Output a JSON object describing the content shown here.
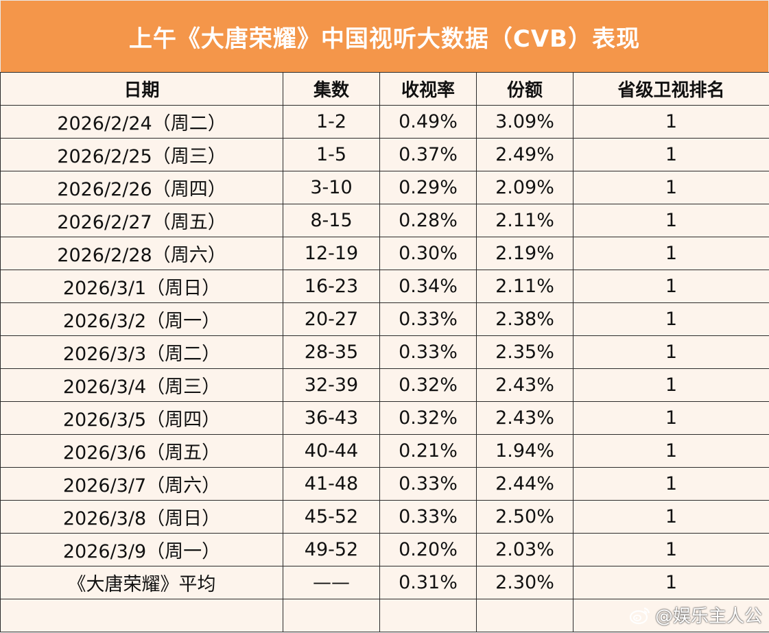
{
  "title": "上午《大唐荣耀》中国视听大数据（CVB）表现",
  "headers": [
    "日期",
    "集数",
    "收视率",
    "份额",
    "省级卫视排名"
  ],
  "rows": [
    [
      "2026/2/24（周二）",
      "1-2",
      "0.49%",
      "3.09%",
      "1"
    ],
    [
      "2026/2/25（周三）",
      "1-5",
      "0.37%",
      "2.49%",
      "1"
    ],
    [
      "2026/2/26（周四）",
      "3-10",
      "0.29%",
      "2.09%",
      "1"
    ],
    [
      "2026/2/27（周五）",
      "8-15",
      "0.28%",
      "2.11%",
      "1"
    ],
    [
      "2026/2/28（周六）",
      "12-19",
      "0.30%",
      "2.19%",
      "1"
    ],
    [
      "2026/3/1（周日）",
      "16-23",
      "0.34%",
      "2.11%",
      "1"
    ],
    [
      "2026/3/2（周一）",
      "20-27",
      "0.33%",
      "2.38%",
      "1"
    ],
    [
      "2026/3/3（周二）",
      "28-35",
      "0.33%",
      "2.35%",
      "1"
    ],
    [
      "2026/3/4（周三）",
      "32-39",
      "0.32%",
      "2.43%",
      "1"
    ],
    [
      "2026/3/5（周四）",
      "36-43",
      "0.32%",
      "2.43%",
      "1"
    ],
    [
      "2026/3/6（周五）",
      "40-44",
      "0.21%",
      "1.94%",
      "1"
    ],
    [
      "2026/3/7（周六）",
      "41-48",
      "0.33%",
      "2.44%",
      "1"
    ],
    [
      "2026/3/8（周日）",
      "45-52",
      "0.33%",
      "2.50%",
      "1"
    ],
    [
      "2026/3/9（周一）",
      "49-52",
      "0.20%",
      "2.03%",
      "1"
    ],
    [
      "《大唐荣耀》平均",
      "——",
      "0.31%",
      "2.30%",
      "1"
    ],
    [
      "",
      "",
      "",
      "",
      ""
    ]
  ],
  "watermark": "@娱乐主人公",
  "watermark_icon": "weibo-icon",
  "colors": {
    "title_bg": "#f4964a",
    "title_text": "#ffffff",
    "table_bg": "#fdf4ec",
    "border": "#2a2a2a"
  }
}
